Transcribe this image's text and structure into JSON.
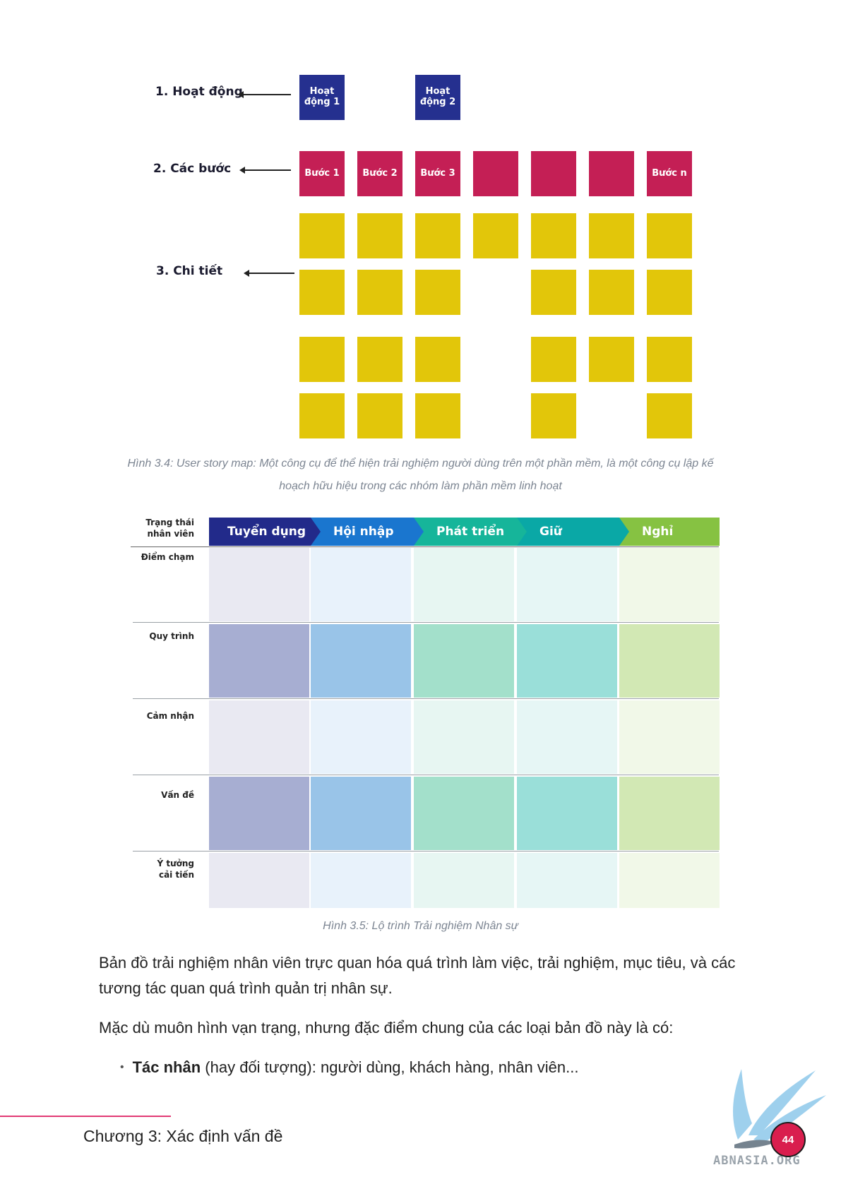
{
  "story_map": {
    "activities_label": "1. Hoạt động",
    "steps_label": "2. Các bước",
    "details_label": "3. Chi tiết",
    "activities": [
      "Hoạt động 1",
      "Hoạt động 2"
    ],
    "steps": [
      "Bước 1",
      "Bước 2",
      "Bước 3",
      "",
      "",
      "",
      "Bước n"
    ],
    "detail_rows": [
      [
        true,
        true,
        true,
        true,
        true,
        true,
        true
      ],
      [
        true,
        true,
        true,
        false,
        true,
        true,
        true
      ],
      [
        true,
        true,
        true,
        false,
        true,
        true,
        true
      ],
      [
        true,
        true,
        true,
        false,
        true,
        false,
        true
      ]
    ],
    "colors": {
      "activity": "#25308f",
      "step": "#c41f55",
      "detail": "#e2c60a"
    },
    "caption_line1": "Hình 3.4: User story map: Một công cụ để thể hiện trải nghiệm người dùng trên một phần mềm, là một công cụ lập kế",
    "caption_line2": "hoạch hữu hiệu trong các nhóm làm phần mềm linh hoạt"
  },
  "journey_map": {
    "corner_label_1": "Trạng thái",
    "corner_label_2": "nhân viên",
    "stages": [
      {
        "label": "Tuyển dụng",
        "color": "#222a8a",
        "light": "#e9e9f2",
        "mid": "#a7aed2"
      },
      {
        "label": "Hội nhập",
        "color": "#1a76cf",
        "light": "#e8f2fb",
        "mid": "#99c4e8"
      },
      {
        "label": "Phát triển",
        "color": "#16b59a",
        "light": "#e7f6f2",
        "mid": "#a3e0cb"
      },
      {
        "label": "Giữ",
        "color": "#0aa8a6",
        "light": "#e6f6f5",
        "mid": "#9adfd9"
      },
      {
        "label": "Nghỉ",
        "color": "#86c242",
        "light": "#f1f8e8",
        "mid": "#d2e8b4"
      }
    ],
    "rows": [
      {
        "label_1": "Điểm chạm",
        "label_2": "",
        "shade": "light"
      },
      {
        "label_1": "Quy trình",
        "label_2": "",
        "shade": "mid"
      },
      {
        "label_1": "Cảm nhận",
        "label_2": "",
        "shade": "light"
      },
      {
        "label_1": "Vấn đề",
        "label_2": "",
        "shade": "mid"
      },
      {
        "label_1": "Ý tưởng",
        "label_2": "cải tiến",
        "shade": "light"
      }
    ],
    "caption": "Hình 3.5: Lộ trình Trải nghiệm Nhân sự"
  },
  "body": {
    "para1": "Bản đồ trải nghiệm nhân viên trực quan hóa quá trình làm việc, trải nghiệm, mục tiêu, và các tương tác quan quá trình quản trị nhân sự.",
    "para2": "Mặc dù muôn hình vạn trạng, nhưng đặc điểm chung của các loại bản đồ này là có:",
    "bullet_bold": "Tác nhân",
    "bullet_rest": " (hay đối tượng): người dùng, khách hàng, nhân viên..."
  },
  "footer": {
    "chapter": "Chương 3: Xác định vấn đề",
    "page_number": "44",
    "logo_text": "ABNASIA.ORG"
  }
}
